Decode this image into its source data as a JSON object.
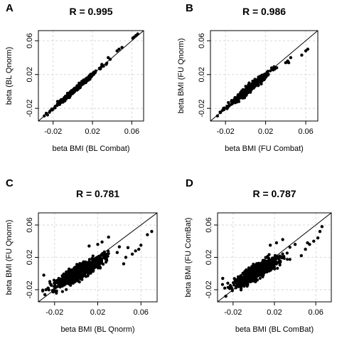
{
  "chart_data": [
    {
      "type": "scatter",
      "panel_label": "A",
      "title": "R =  0.995",
      "xlabel": "beta BMI (BL Combat)",
      "ylabel": "beta (BL Qnorm)",
      "xlim": [
        -0.035,
        0.072
      ],
      "ylim": [
        -0.035,
        0.072
      ],
      "xticks": [
        -0.02,
        0.02,
        0.06
      ],
      "xtick_labels": [
        "-0.02",
        "0.02",
        "0.06"
      ],
      "yticks": [
        -0.02,
        0.02,
        0.06
      ],
      "ytick_labels": [
        "-0.02",
        "0.02",
        "0.06"
      ],
      "grid": true,
      "identity_line": true,
      "cloud": {
        "n": 360,
        "x_mean": 0.004,
        "x_sd": 0.011,
        "noise": 0.0013,
        "slope": 1.0
      },
      "points": [
        [
          0.045,
          0.048
        ],
        [
          0.047,
          0.05
        ],
        [
          0.05,
          0.052
        ],
        [
          0.061,
          0.063
        ],
        [
          0.062,
          0.064
        ],
        [
          0.064,
          0.066
        ],
        [
          0.066,
          0.068
        ],
        [
          0.036,
          0.04
        ],
        [
          0.038,
          0.038
        ],
        [
          0.034,
          0.032
        ],
        [
          -0.029,
          -0.029
        ],
        [
          -0.027,
          -0.026
        ]
      ]
    },
    {
      "type": "scatter",
      "panel_label": "B",
      "title": "R =  0.986",
      "xlabel": "beta BMI (FU Combat)",
      "ylabel": "beta BMI (FU Qnorm)",
      "xlim": [
        -0.035,
        0.072
      ],
      "ylim": [
        -0.035,
        0.072
      ],
      "xticks": [
        -0.02,
        0.02,
        0.06
      ],
      "xtick_labels": [
        "-0.02",
        "0.02",
        "0.06"
      ],
      "yticks": [
        -0.02,
        0.02,
        0.06
      ],
      "ytick_labels": [
        "-0.02",
        "0.02",
        "0.06"
      ],
      "grid": true,
      "identity_line": true,
      "cloud": {
        "n": 360,
        "x_mean": 0.004,
        "x_sd": 0.01,
        "noise": 0.0022,
        "slope": 0.95
      },
      "points": [
        [
          0.04,
          0.034
        ],
        [
          0.042,
          0.036
        ],
        [
          0.043,
          0.034
        ],
        [
          0.045,
          0.04
        ],
        [
          0.056,
          0.043
        ],
        [
          0.06,
          0.048
        ],
        [
          0.062,
          0.05
        ],
        [
          0.031,
          0.028
        ],
        [
          -0.028,
          -0.029
        ],
        [
          -0.025,
          -0.025
        ],
        [
          -0.022,
          -0.02
        ]
      ]
    },
    {
      "type": "scatter",
      "panel_label": "C",
      "title": "R =  0.781",
      "xlabel": "beta BMI (BL Qnorm)",
      "ylabel": "beta BMI (FU Qnorm)",
      "xlim": [
        -0.035,
        0.075
      ],
      "ylim": [
        -0.035,
        0.075
      ],
      "xticks": [
        -0.02,
        0.02,
        0.06
      ],
      "xtick_labels": [
        "-0.02",
        "0.02",
        "0.06"
      ],
      "yticks": [
        -0.02,
        0.02,
        0.06
      ],
      "ytick_labels": [
        "-0.02",
        "0.02",
        "0.06"
      ],
      "grid": true,
      "identity_line": true,
      "cloud": {
        "n": 700,
        "x_mean": 0.003,
        "x_sd": 0.011,
        "noise": 0.0045,
        "slope": 0.72
      },
      "points": [
        [
          0.07,
          0.052
        ],
        [
          0.066,
          0.048
        ],
        [
          0.06,
          0.035
        ],
        [
          0.058,
          0.03
        ],
        [
          0.055,
          0.028
        ],
        [
          0.052,
          0.024
        ],
        [
          0.048,
          0.032
        ],
        [
          0.046,
          0.02
        ],
        [
          0.044,
          0.012
        ],
        [
          0.04,
          0.033
        ],
        [
          0.038,
          0.026
        ],
        [
          -0.03,
          -0.002
        ],
        [
          -0.028,
          -0.02
        ],
        [
          -0.026,
          -0.018
        ],
        [
          -0.029,
          -0.026
        ],
        [
          0.03,
          0.045
        ],
        [
          0.024,
          0.039
        ],
        [
          0.02,
          0.036
        ],
        [
          0.012,
          0.034
        ]
      ]
    },
    {
      "type": "scatter",
      "panel_label": "D",
      "title": "R =  0.787",
      "xlabel": "beta BMI (BL ComBat)",
      "ylabel": "beta BMI (FU ComBat)",
      "xlim": [
        -0.035,
        0.075
      ],
      "ylim": [
        -0.035,
        0.075
      ],
      "xticks": [
        -0.02,
        0.02,
        0.06
      ],
      "xtick_labels": [
        "-0.02",
        "0.02",
        "0.06"
      ],
      "yticks": [
        -0.02,
        0.02,
        0.06
      ],
      "ytick_labels": [
        "-0.02",
        "0.02",
        "0.06"
      ],
      "grid": true,
      "identity_line": true,
      "cloud": {
        "n": 700,
        "x_mean": 0.003,
        "x_sd": 0.011,
        "noise": 0.0045,
        "slope": 0.74
      },
      "points": [
        [
          0.066,
          0.058
        ],
        [
          0.064,
          0.052
        ],
        [
          0.062,
          0.044
        ],
        [
          0.058,
          0.04
        ],
        [
          0.054,
          0.036
        ],
        [
          0.052,
          0.038
        ],
        [
          0.05,
          0.03
        ],
        [
          0.046,
          0.022
        ],
        [
          0.04,
          0.036
        ],
        [
          -0.03,
          -0.006
        ],
        [
          -0.028,
          -0.018
        ],
        [
          -0.027,
          -0.028
        ],
        [
          0.028,
          0.042
        ],
        [
          0.022,
          0.038
        ],
        [
          0.016,
          0.035
        ]
      ]
    }
  ]
}
